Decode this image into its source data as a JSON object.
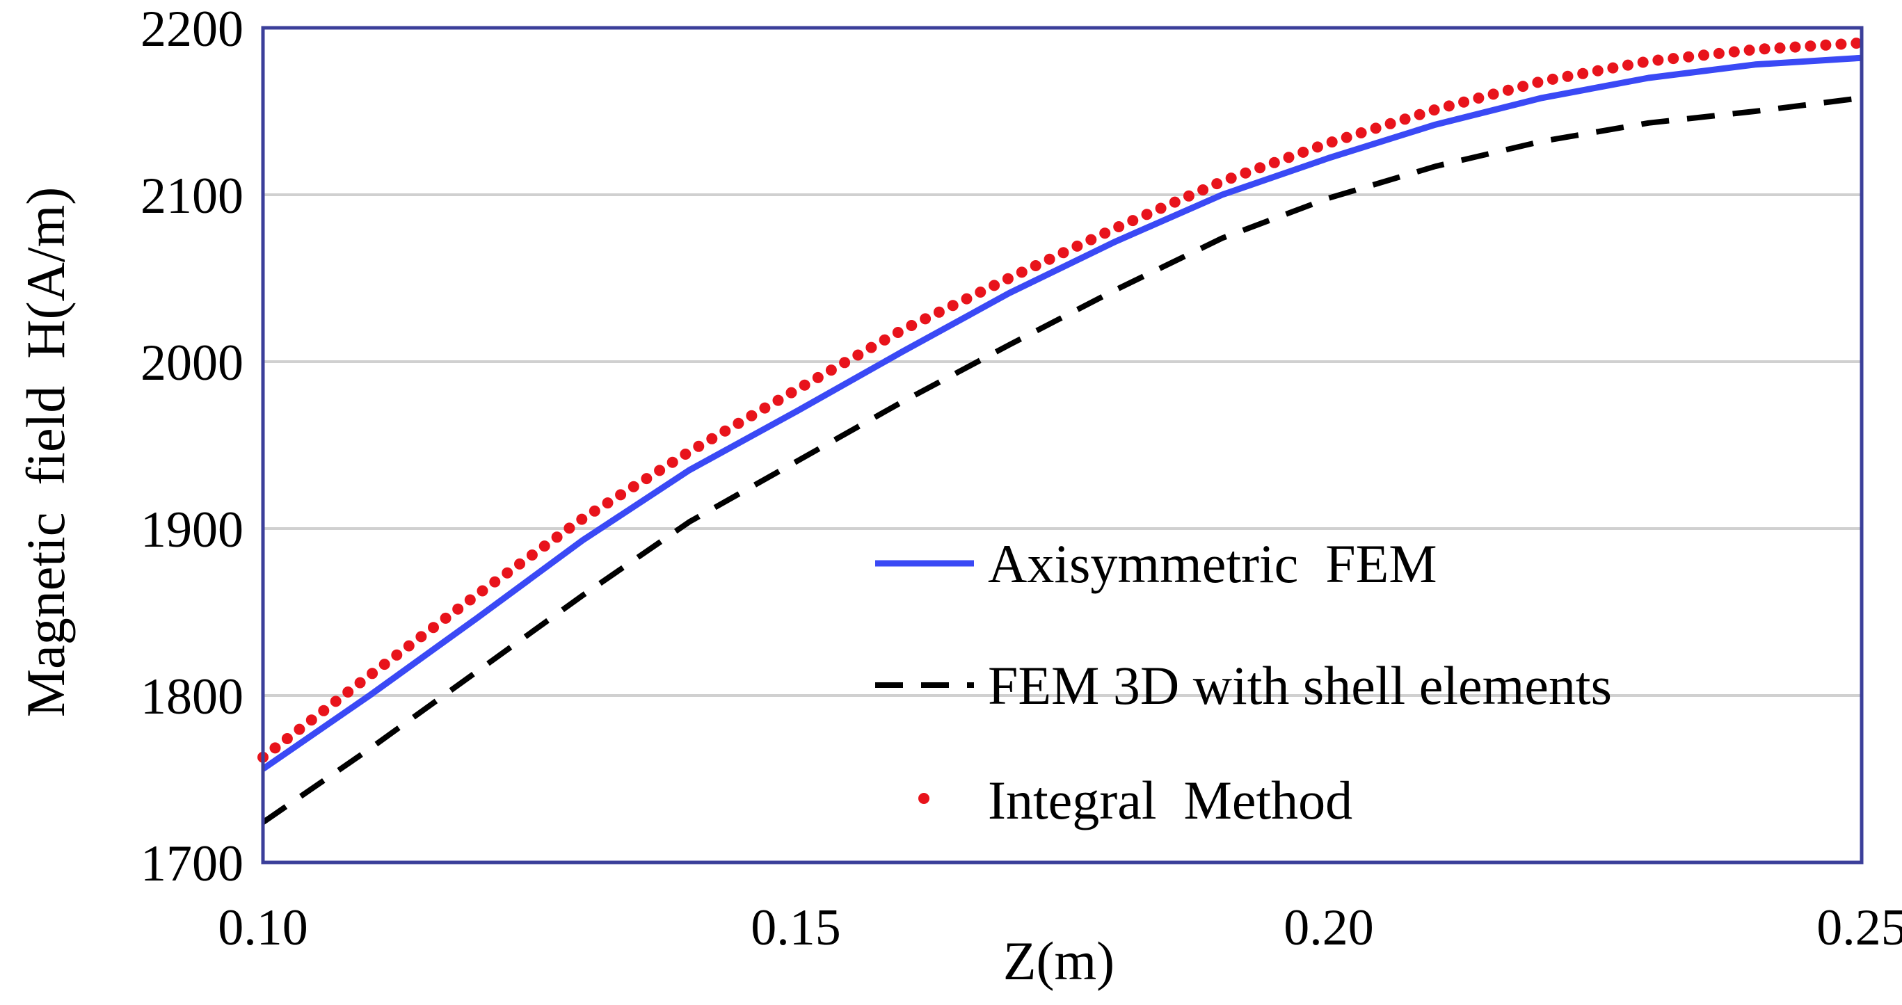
{
  "chart_data": {
    "type": "line",
    "title": "",
    "xlabel": "Z(m)",
    "ylabel": "Magnetic  field  H(A/m)",
    "xlim": [
      0.1,
      0.25
    ],
    "ylim": [
      1700,
      2200
    ],
    "x_ticks": [
      "0.10",
      "0.15",
      "0.20",
      "0.25"
    ],
    "y_ticks": [
      "1700",
      "1800",
      "1900",
      "2000",
      "2100",
      "2200"
    ],
    "grid": "horizontal",
    "legend_position": "center-right",
    "x": [
      0.1,
      0.11,
      0.12,
      0.13,
      0.14,
      0.15,
      0.16,
      0.17,
      0.18,
      0.19,
      0.2,
      0.21,
      0.22,
      0.23,
      0.24,
      0.25
    ],
    "series": [
      {
        "name": "Axisymmetric  FEM",
        "style": "solid",
        "color": "#3a49f5",
        "values": [
          1756,
          1800,
          1846,
          1893,
          1935,
          1970,
          2006,
          2041,
          2072,
          2100,
          2122,
          2142,
          2158,
          2170,
          2178,
          2182
        ]
      },
      {
        "name": "FEM 3D with shell elements",
        "style": "dashed",
        "color": "#000000",
        "values": [
          1724,
          1768,
          1814,
          1860,
          1904,
          1940,
          1976,
          2010,
          2043,
          2074,
          2098,
          2117,
          2132,
          2143,
          2150,
          2158
        ]
      },
      {
        "name": "Integral  Method",
        "style": "dotted",
        "color": "#e8131b",
        "values": [
          1763,
          1812,
          1860,
          1906,
          1946,
          1983,
          2019,
          2050,
          2080,
          2108,
          2131,
          2151,
          2168,
          2180,
          2187,
          2191
        ]
      }
    ]
  }
}
